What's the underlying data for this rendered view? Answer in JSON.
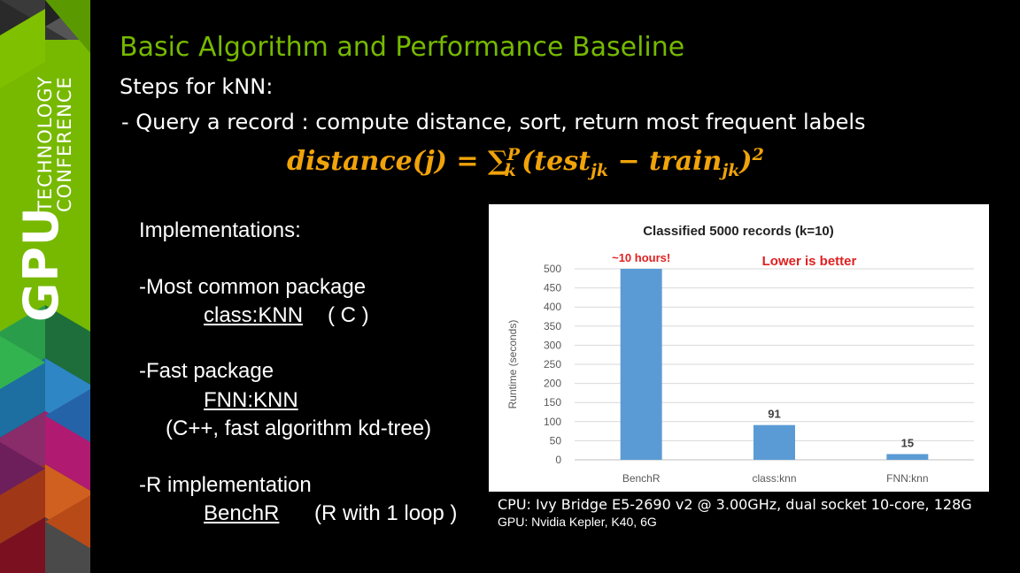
{
  "branding": {
    "brand_word": "GPU",
    "sub_line1": "TECHNOLOGY",
    "sub_line2": "CONFERENCE",
    "accent_color": "#76b900"
  },
  "slide": {
    "title": "Basic Algorithm and Performance Baseline",
    "steps_heading": "Steps for kNN:",
    "bullet": "-  Query a record : compute distance, sort, return most frequent labels",
    "formula": {
      "lhs": "distance(j) = ∑",
      "sum_sub": "k",
      "sum_sup": "P",
      "paren_open": "(test",
      "test_sub": "jk",
      "minus_train": " − train",
      "train_sub": "jk",
      "paren_close": ")",
      "power": "2",
      "color": "#f0a30a"
    },
    "implementations": {
      "heading": "Implementations:",
      "items": [
        {
          "title": "-Most common package",
          "name": "class:KNN",
          "detail": "( C )"
        },
        {
          "title": "-Fast package",
          "name": "FNN:KNN",
          "detail": "(C++, fast algorithm kd-tree)"
        },
        {
          "title": "-R implementation",
          "name": "BenchR",
          "detail": "(R with 1 loop )"
        }
      ]
    },
    "notes": {
      "cpu": "CPU: Ivy Bridge E5-2690 v2 @ 3.00GHz, dual socket 10-core, 128G",
      "gpu": "GPU: Nvidia Kepler, K40, 6G"
    }
  },
  "chart_data": {
    "type": "bar",
    "title": "Classified 5000 records (k=10)",
    "ylabel": "Runtime (seconds)",
    "xlabel": "",
    "categories": [
      "BenchR",
      "class:knn",
      "FNN:knn"
    ],
    "values": [
      500,
      91,
      15
    ],
    "data_labels": [
      "~10 hours!",
      "91",
      "15"
    ],
    "annotation": "Lower is better",
    "ylim": [
      0,
      500
    ],
    "yticks": [
      0,
      50,
      100,
      150,
      200,
      250,
      300,
      350,
      400,
      450,
      500
    ],
    "grid": true,
    "bar_color": "#5b9bd5",
    "highlight_color": "#e02020"
  }
}
